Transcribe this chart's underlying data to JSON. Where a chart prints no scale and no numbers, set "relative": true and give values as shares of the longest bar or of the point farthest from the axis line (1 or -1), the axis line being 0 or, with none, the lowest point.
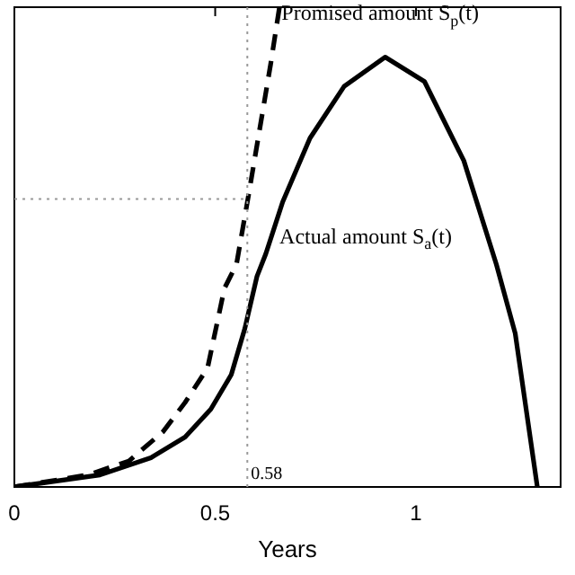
{
  "chart_data": {
    "type": "line",
    "relative": true,
    "xlabel": "Years",
    "xlim": [
      0,
      1.36
    ],
    "xticks": [
      0,
      0.5,
      1
    ],
    "grid": false,
    "legend": false,
    "marker": "none",
    "series": [
      {
        "name": "Promised amount S$_{p}$(t)",
        "color": "#000000",
        "line_style": "dashed",
        "x": [
          0,
          0.183,
          0.285,
          0.37,
          0.425,
          0.481,
          0.523,
          0.553,
          0.583,
          0.609,
          0.638,
          0.66
        ],
        "values": [
          0,
          0.025,
          0.054,
          0.115,
          0.176,
          0.248,
          0.414,
          0.464,
          0.608,
          0.737,
          0.881,
          1
        ]
      },
      {
        "name": "Actual amount S$_{a}$(t)",
        "color": "#000000",
        "line_style": "solid",
        "x": [
          0,
          0.213,
          0.34,
          0.425,
          0.489,
          0.54,
          0.574,
          0.604,
          0.626,
          0.668,
          0.736,
          0.821,
          0.923,
          1.021,
          1.119,
          1.2,
          1.247,
          1.302
        ],
        "values": [
          0,
          0.025,
          0.061,
          0.104,
          0.162,
          0.234,
          0.331,
          0.439,
          0.486,
          0.594,
          0.727,
          0.835,
          0.896,
          0.845,
          0.68,
          0.464,
          0.32,
          0
        ]
      }
    ],
    "ref_lines": [
      {
        "axis": "x",
        "value": 0.58,
        "label": "0.58",
        "line_style": "dotted",
        "color": "#999999"
      },
      {
        "axis": "y",
        "value": 0.6,
        "line_style": "dotted",
        "color": "#999999"
      }
    ]
  }
}
